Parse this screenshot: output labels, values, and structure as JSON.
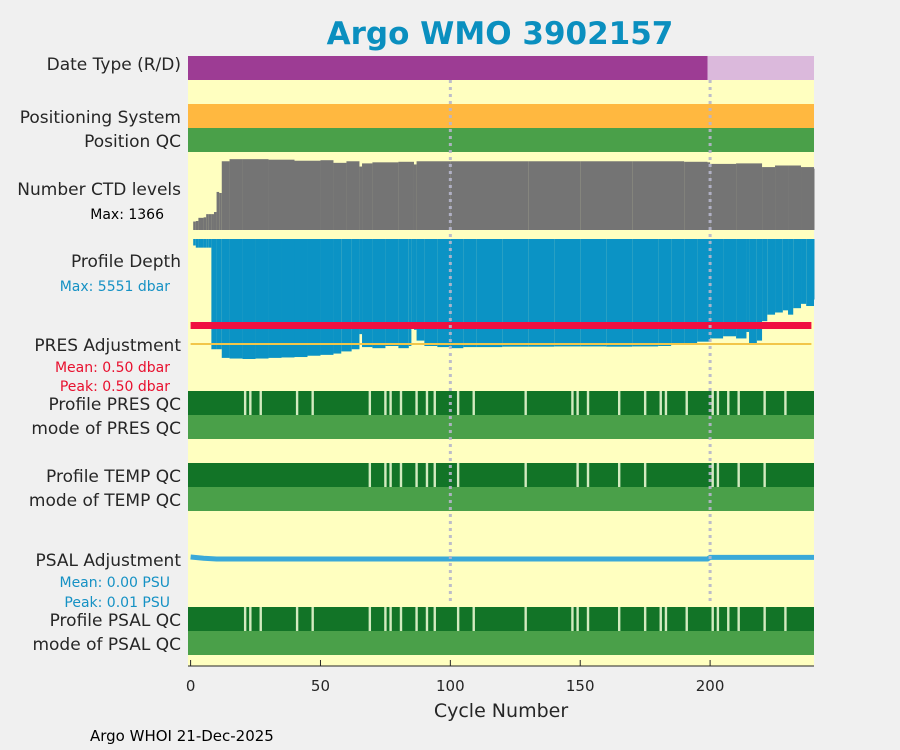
{
  "chart_data": {
    "type": "bar",
    "title": "Argo WMO 3902157",
    "xlabel": "Cycle Number",
    "xlim": [
      -1,
      240
    ],
    "xticks": [
      0,
      50,
      100,
      150,
      200
    ],
    "xtick_labels": [
      "0",
      "50",
      "100",
      "150",
      "200"
    ],
    "guide_cycles": [
      100,
      200
    ],
    "footer": "Argo WHOI 21-Dec-2025",
    "rows": {
      "date_type": {
        "label": "Date Type (R/D)",
        "realtime_until_cycle": 199,
        "last_cycle": 240
      },
      "positioning_system": {
        "label": "Positioning System"
      },
      "position_qc": {
        "label": "Position QC"
      },
      "ctd_levels": {
        "label": "Number CTD levels",
        "max_label": "Max: 1366",
        "max_value": 1366
      },
      "profile_depth": {
        "label": "Profile Depth",
        "max_label": "Max: 5551 dbar",
        "max_value": 5551
      },
      "pres_adjustment": {
        "label": "PRES Adjustment",
        "mean_label": "Mean: 0.50 dbar",
        "peak_label": "Peak: 0.50 dbar",
        "mean": 0.5,
        "peak": 0.5
      },
      "profile_pres_qc": {
        "label": "Profile PRES QC",
        "flag_cycles": [
          21,
          23,
          27,
          41,
          47,
          69,
          75,
          77,
          81,
          87,
          91,
          94,
          103,
          109,
          129,
          147,
          149,
          153,
          165,
          175,
          181,
          183,
          191,
          201,
          203,
          207,
          211,
          221,
          229
        ]
      },
      "mode_pres_qc": {
        "label": "mode of PRES QC"
      },
      "profile_temp_qc": {
        "label": "Profile TEMP QC",
        "flag_cycles": [
          69,
          75,
          77,
          81,
          87,
          91,
          94,
          103,
          129,
          149,
          153,
          165,
          175,
          201,
          203,
          211,
          221
        ]
      },
      "mode_temp_qc": {
        "label": "mode of TEMP QC"
      },
      "psal_adjustment": {
        "label": "PSAL Adjustment",
        "mean_label": "Mean: 0.00 PSU",
        "peak_label": "Peak: 0.01 PSU",
        "mean": 0.0,
        "peak": 0.01
      },
      "profile_psal_qc": {
        "label": "Profile PSAL QC",
        "flag_cycles": [
          21,
          23,
          27,
          41,
          47,
          69,
          75,
          77,
          81,
          87,
          91,
          94,
          103,
          109,
          129,
          147,
          149,
          153,
          165,
          175,
          181,
          183,
          191,
          201,
          203,
          207,
          211,
          221,
          229
        ]
      },
      "mode_psal_qc": {
        "label": "mode of PSAL QC"
      }
    },
    "ctd_levels_series": [
      [
        1,
        160
      ],
      [
        2,
        170
      ],
      [
        3,
        230
      ],
      [
        4,
        230
      ],
      [
        5,
        240
      ],
      [
        6,
        300
      ],
      [
        7,
        300
      ],
      [
        8,
        300
      ],
      [
        9,
        340
      ],
      [
        10,
        720
      ],
      [
        11,
        700
      ],
      [
        12,
        1300
      ],
      [
        15,
        1340
      ],
      [
        20,
        1340
      ],
      [
        30,
        1330
      ],
      [
        40,
        1310
      ],
      [
        50,
        1320
      ],
      [
        55,
        1270
      ],
      [
        60,
        1300
      ],
      [
        65,
        1200
      ],
      [
        66,
        1260
      ],
      [
        70,
        1280
      ],
      [
        80,
        1290
      ],
      [
        86,
        1240
      ],
      [
        87,
        1300
      ],
      [
        100,
        1300
      ],
      [
        130,
        1300
      ],
      [
        150,
        1300
      ],
      [
        170,
        1300
      ],
      [
        190,
        1290
      ],
      [
        199,
        1280
      ],
      [
        200,
        1250
      ],
      [
        210,
        1260
      ],
      [
        220,
        1190
      ],
      [
        225,
        1220
      ],
      [
        230,
        1220
      ],
      [
        235,
        1190
      ],
      [
        240,
        1160
      ]
    ],
    "profile_depth_series": [
      [
        0,
        0
      ],
      [
        1,
        300
      ],
      [
        2,
        400
      ],
      [
        3,
        400
      ],
      [
        4,
        400
      ],
      [
        5,
        400
      ],
      [
        6,
        400
      ],
      [
        7,
        400
      ],
      [
        8,
        5100
      ],
      [
        10,
        5100
      ],
      [
        12,
        5500
      ],
      [
        15,
        5530
      ],
      [
        20,
        5551
      ],
      [
        25,
        5530
      ],
      [
        30,
        5500
      ],
      [
        35,
        5480
      ],
      [
        40,
        5460
      ],
      [
        45,
        5400
      ],
      [
        50,
        5360
      ],
      [
        55,
        5300
      ],
      [
        58,
        5200
      ],
      [
        62,
        5100
      ],
      [
        65,
        4400
      ],
      [
        66,
        5000
      ],
      [
        70,
        5050
      ],
      [
        75,
        4950
      ],
      [
        80,
        5050
      ],
      [
        84,
        4950
      ],
      [
        85,
        3850
      ],
      [
        86,
        4200
      ],
      [
        87,
        4700
      ],
      [
        90,
        4950
      ],
      [
        95,
        5000
      ],
      [
        100,
        5050
      ],
      [
        105,
        5000
      ],
      [
        110,
        5000
      ],
      [
        120,
        4980
      ],
      [
        130,
        4980
      ],
      [
        140,
        4970
      ],
      [
        150,
        4970
      ],
      [
        160,
        4980
      ],
      [
        170,
        4970
      ],
      [
        180,
        4950
      ],
      [
        185,
        4900
      ],
      [
        190,
        4850
      ],
      [
        195,
        4750
      ],
      [
        200,
        4600
      ],
      [
        205,
        4500
      ],
      [
        210,
        4600
      ],
      [
        214,
        4300
      ],
      [
        215,
        4900
      ],
      [
        218,
        4700
      ],
      [
        220,
        3800
      ],
      [
        222,
        3500
      ],
      [
        225,
        3400
      ],
      [
        228,
        3300
      ],
      [
        230,
        3500
      ],
      [
        232,
        3200
      ],
      [
        235,
        3000
      ],
      [
        237,
        3100
      ],
      [
        240,
        2800
      ]
    ],
    "psal_series": [
      [
        0,
        0.005
      ],
      [
        5,
        0.002
      ],
      [
        10,
        0.0
      ],
      [
        50,
        0.0
      ],
      [
        100,
        0.0
      ],
      [
        150,
        0.0
      ],
      [
        199,
        0.0
      ],
      [
        200,
        0.004
      ],
      [
        210,
        0.004
      ],
      [
        240,
        0.004
      ]
    ]
  }
}
